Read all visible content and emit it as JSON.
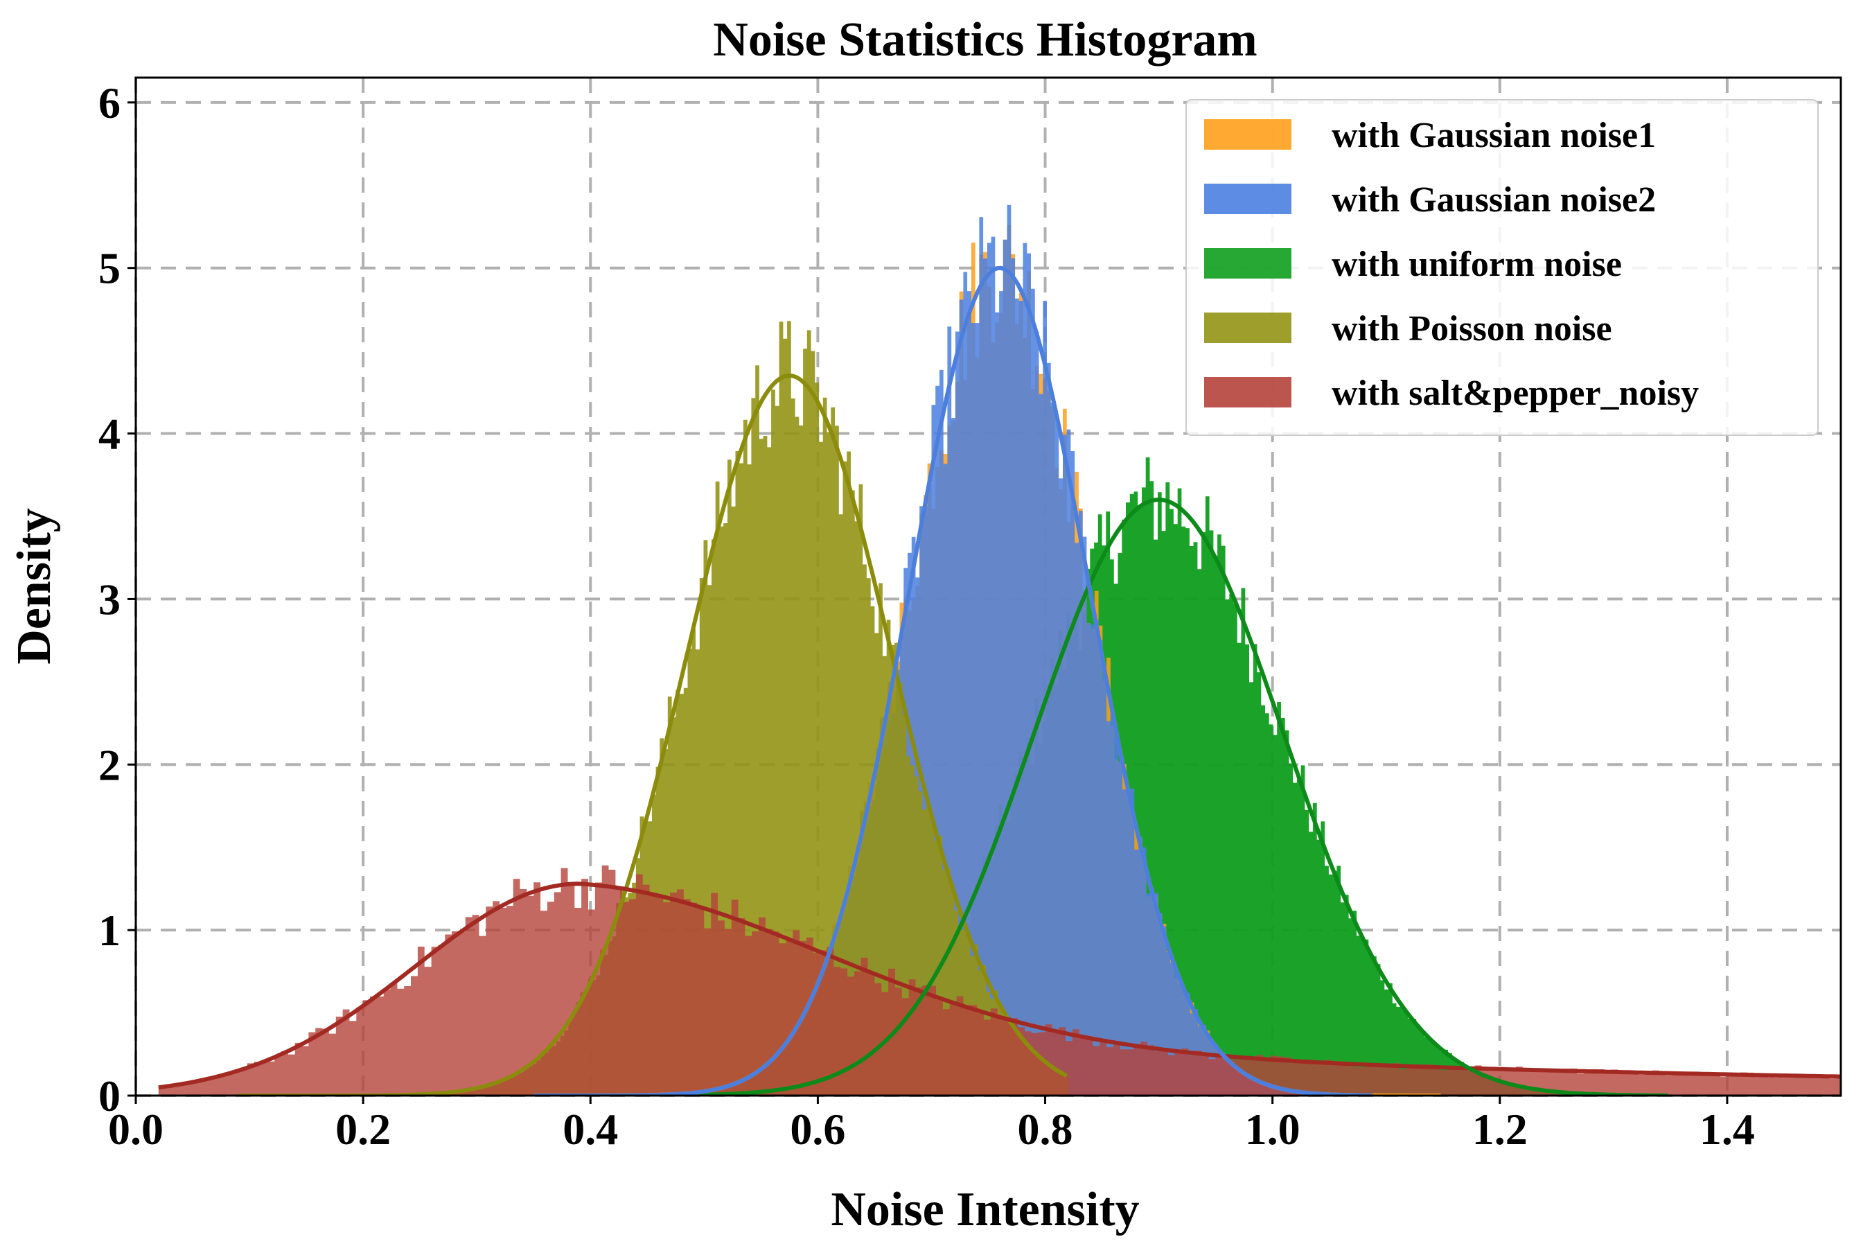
{
  "chart_data": {
    "type": "histogram",
    "title": "Noise Statistics Histogram",
    "xlabel": "Noise Intensity",
    "ylabel": "Density",
    "xlim": [
      0.0,
      1.5
    ],
    "ylim": [
      0,
      6.15
    ],
    "xticks": [
      "0.0",
      "0.2",
      "0.4",
      "0.6",
      "0.8",
      "1.0",
      "1.2",
      "1.4"
    ],
    "yticks": [
      "0",
      "1",
      "2",
      "3",
      "4",
      "5",
      "6"
    ],
    "grid": true,
    "legend_position": "top-right",
    "series": [
      {
        "name": "with Gaussian noise1",
        "color": "#ff9f1c",
        "distribution": "normal",
        "mean": 0.76,
        "std": 0.08,
        "peak_density": 5.0,
        "range": [
          0.35,
          1.15
        ]
      },
      {
        "name": "with Gaussian noise2",
        "color": "#4a7fe0",
        "distribution": "normal",
        "mean": 0.76,
        "std": 0.08,
        "peak_density": 5.0,
        "range": [
          0.35,
          1.09
        ]
      },
      {
        "name": "with uniform noise",
        "color": "#0f9e1e",
        "distribution": "normal",
        "mean": 0.9,
        "std": 0.11,
        "peak_density": 3.6,
        "range": [
          0.43,
          1.35
        ]
      },
      {
        "name": "with Poisson noise",
        "color": "#949416",
        "distribution": "normal",
        "mean": 0.575,
        "std": 0.091,
        "peak_density": 4.35,
        "range": [
          0.09,
          0.82
        ]
      },
      {
        "name": "with salt&pepper_noisy",
        "color": "#b5423b",
        "distribution": "skewed",
        "peak_x": 0.39,
        "peak_density": 1.28,
        "range": [
          0.02,
          1.5
        ]
      }
    ]
  }
}
